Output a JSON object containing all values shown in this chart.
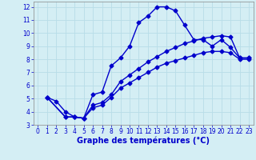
{
  "title": "",
  "xlabel": "Graphe des températures (°C)",
  "background_color": "#d4eef4",
  "grid_color": "#b8dde8",
  "line_color": "#0000cc",
  "xlim": [
    -0.5,
    23.5
  ],
  "ylim": [
    3,
    12.4
  ],
  "xticks": [
    0,
    1,
    2,
    3,
    4,
    5,
    6,
    7,
    8,
    9,
    10,
    11,
    12,
    13,
    14,
    15,
    16,
    17,
    18,
    19,
    20,
    21,
    22,
    23
  ],
  "yticks": [
    3,
    4,
    5,
    6,
    7,
    8,
    9,
    10,
    11,
    12
  ],
  "line1_x": [
    1,
    2,
    3,
    4,
    5,
    6,
    7,
    8,
    9,
    10,
    11,
    12,
    13,
    14,
    15,
    16,
    17,
    18,
    19,
    20,
    21,
    22,
    23
  ],
  "line1_y": [
    5.1,
    4.8,
    4.0,
    3.6,
    3.5,
    5.3,
    5.5,
    7.5,
    8.1,
    9.0,
    10.8,
    11.3,
    12.0,
    12.0,
    11.7,
    10.6,
    9.5,
    9.5,
    9.0,
    9.5,
    8.9,
    8.1,
    8.1
  ],
  "line2_x": [
    1,
    3,
    4,
    5,
    6,
    7,
    8,
    9,
    10,
    11,
    12,
    13,
    14,
    15,
    16,
    17,
    18,
    19,
    20,
    21,
    22,
    23
  ],
  "line2_y": [
    5.1,
    3.6,
    3.6,
    3.5,
    4.5,
    4.7,
    5.3,
    6.3,
    6.8,
    7.3,
    7.8,
    8.2,
    8.6,
    8.9,
    9.2,
    9.4,
    9.6,
    9.7,
    9.8,
    9.7,
    8.1,
    8.1
  ],
  "line3_x": [
    1,
    3,
    4,
    5,
    6,
    7,
    8,
    9,
    10,
    11,
    12,
    13,
    14,
    15,
    16,
    17,
    18,
    19,
    20,
    21,
    22,
    23
  ],
  "line3_y": [
    5.1,
    3.6,
    3.6,
    3.5,
    4.3,
    4.5,
    5.1,
    5.8,
    6.2,
    6.6,
    7.0,
    7.4,
    7.7,
    7.9,
    8.1,
    8.3,
    8.5,
    8.6,
    8.6,
    8.5,
    8.0,
    8.0
  ],
  "marker": "D",
  "marker_size": 2.5,
  "linewidth": 1.0,
  "tick_fontsize": 5.5,
  "xlabel_fontsize": 7
}
